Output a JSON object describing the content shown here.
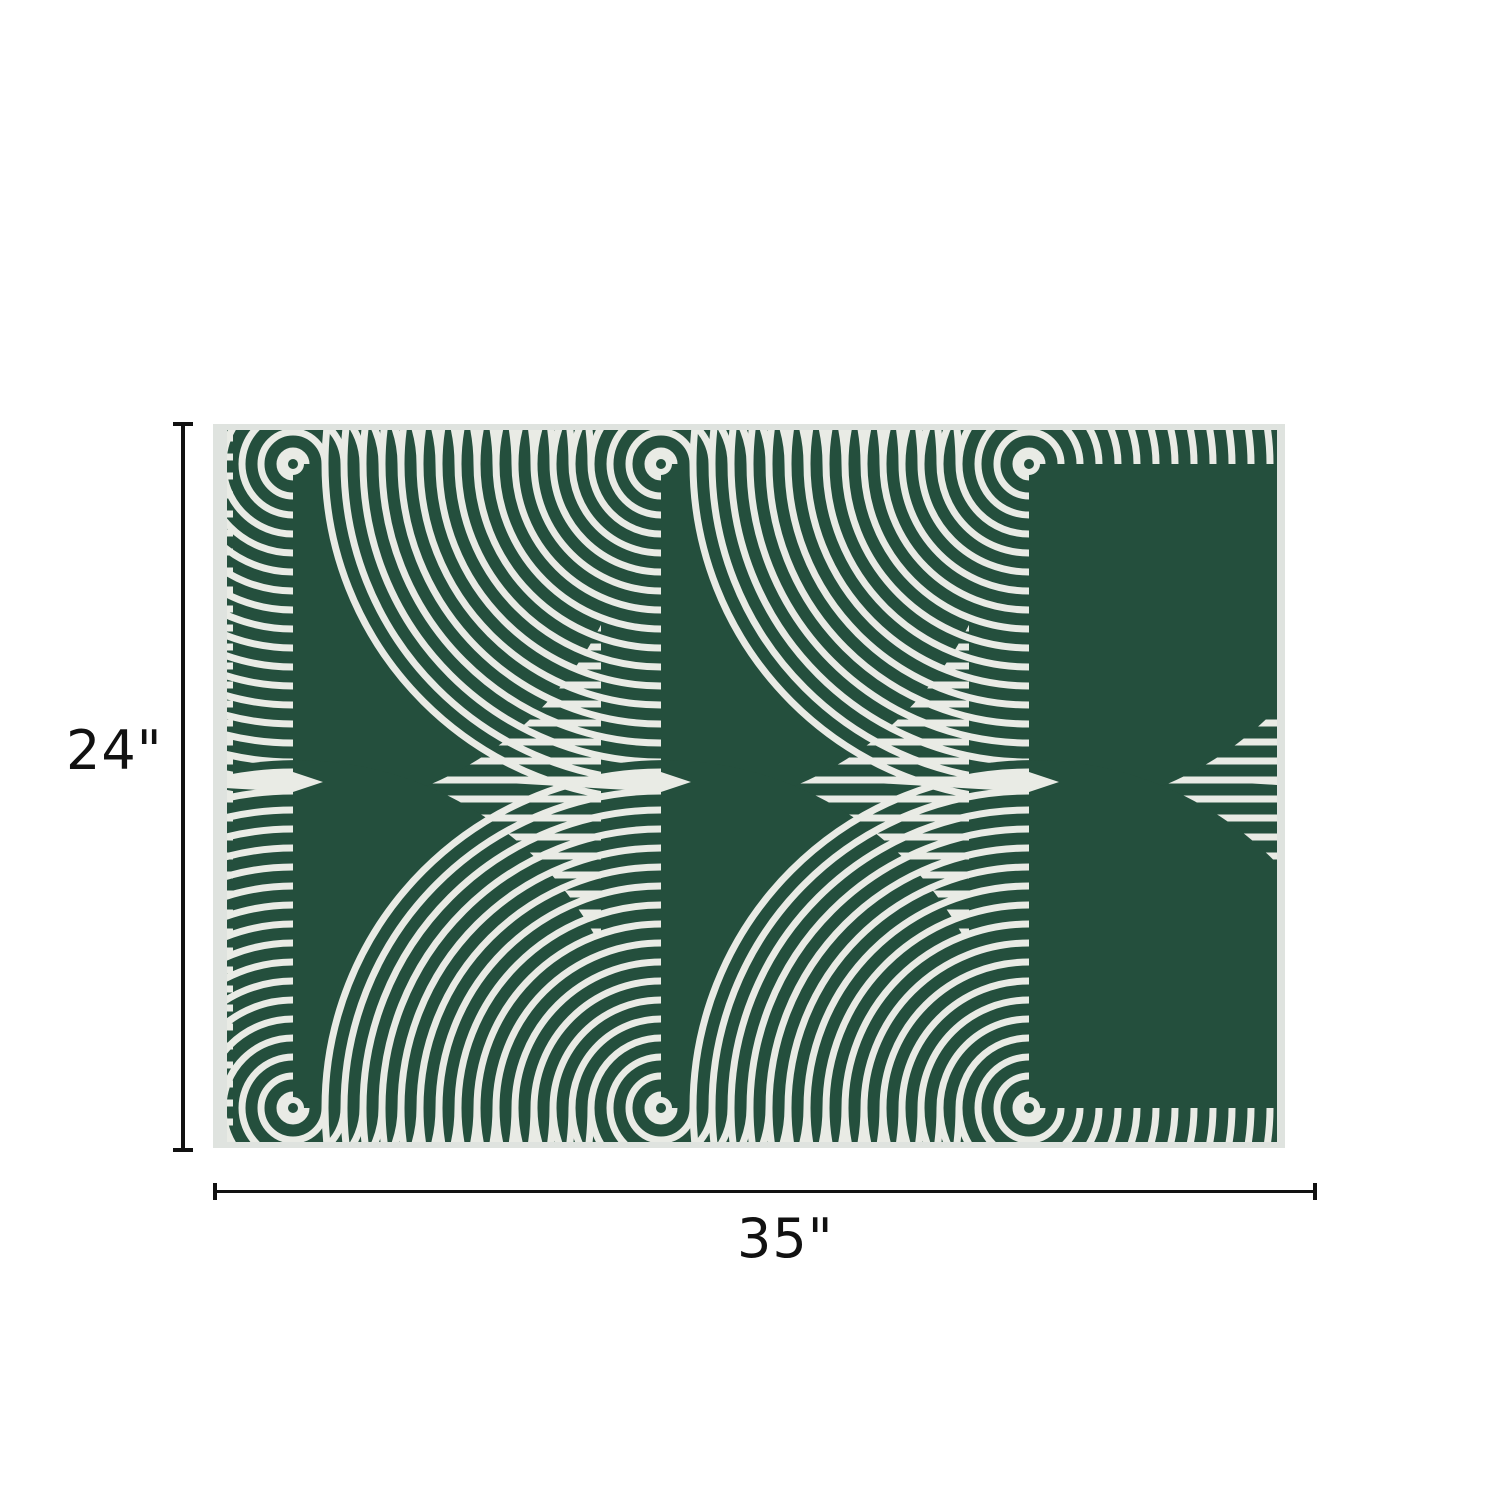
{
  "product": {
    "height_label": "24\"",
    "width_label": "35\"",
    "pattern_color": "#244f3d",
    "line_color": "#e9ebe5",
    "icon": "rug-wave-pattern"
  }
}
